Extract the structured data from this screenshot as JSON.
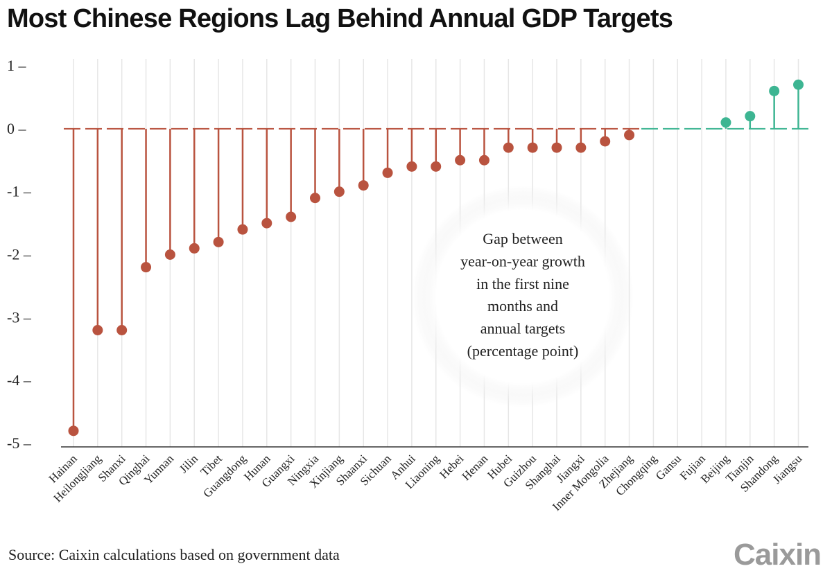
{
  "title": "Most Chinese Regions Lag Behind Annual GDP Targets",
  "source": "Source: Caixin calculations based on government data",
  "logo_text": "Caixin",
  "colors": {
    "negative": "#b9533f",
    "positive": "#3db592",
    "grid": "#e6e6e6",
    "axis": "#333333"
  },
  "chart_data": {
    "type": "lollipop",
    "title": "Most Chinese Regions Lag Behind Annual GDP Targets",
    "annotation": [
      "Gap between",
      "year-on-year growth",
      "in the first nine",
      "months and",
      "annual targets",
      "(percentage point)"
    ],
    "ylim": [
      -5,
      1
    ],
    "yticks": [
      1,
      0,
      -1,
      -2,
      -3,
      -4,
      -5
    ],
    "ytick_labels": [
      "1 –",
      "0 –",
      "-1 –",
      "-2 –",
      "-3 –",
      "-4 –",
      "-5 –"
    ],
    "grid": true,
    "categories": [
      "Hainan",
      "Heilongjiang",
      "Shanxi",
      "Qinghai",
      "Yunnan",
      "Jilin",
      "Tibet",
      "Guangdong",
      "Hunan",
      "Guangxi",
      "Ningxia",
      "Xinjiang",
      "Shaanxi",
      "Sichuan",
      "Anhui",
      "Liaoning",
      "Hebei",
      "Henan",
      "Hubei",
      "Guizhou",
      "Shanghai",
      "Jiangxi",
      "Inner Mongolia",
      "Zhejiang",
      "Chongqing",
      "Gansu",
      "Fujian",
      "Beijing",
      "Tianjin",
      "Shandong",
      "Jiangsu"
    ],
    "values": [
      -4.8,
      -3.2,
      -3.2,
      -2.2,
      -2.0,
      -1.9,
      -1.8,
      -1.6,
      -1.5,
      -1.4,
      -1.1,
      -1.0,
      -0.9,
      -0.7,
      -0.6,
      -0.6,
      -0.5,
      -0.5,
      -0.3,
      -0.3,
      -0.3,
      -0.3,
      -0.2,
      -0.1,
      0,
      0,
      0,
      0.1,
      0.2,
      0.6,
      0.7
    ]
  }
}
